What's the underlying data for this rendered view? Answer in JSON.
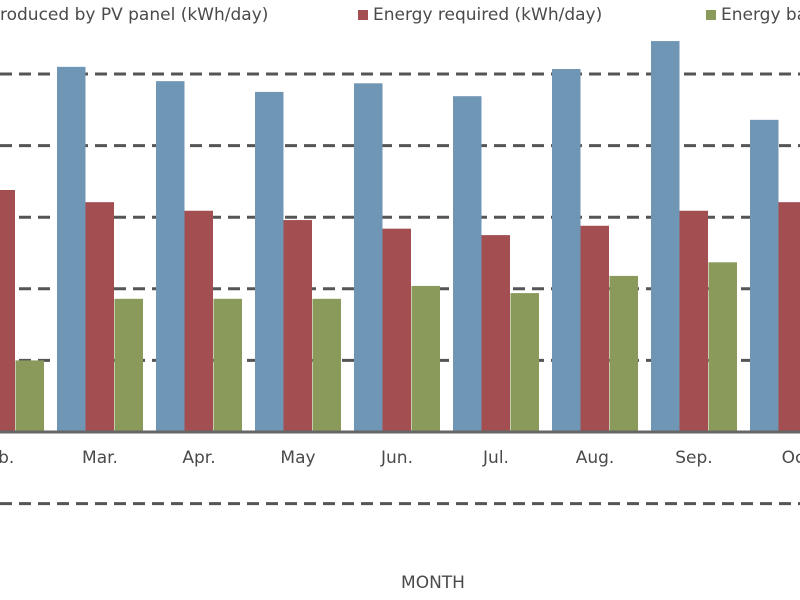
{
  "chart_data": {
    "type": "bar",
    "x_label": "MONTH",
    "categories": [
      "eb.",
      "Mar.",
      "Apr.",
      "May",
      "Jun.",
      "Jul.",
      "Aug.",
      "Sep.",
      "Oc"
    ],
    "series": [
      {
        "name": "roduced by PV panel (kWh/day)",
        "color": "#7096b6",
        "values": [
          null,
          5.1,
          4.9,
          4.75,
          4.87,
          4.69,
          5.07,
          5.46,
          4.36
        ]
      },
      {
        "name": "Energy required (kWh/day)",
        "color": "#a34e50",
        "values": [
          3.38,
          3.21,
          3.09,
          2.96,
          2.84,
          2.75,
          2.88,
          3.09,
          3.21
        ]
      },
      {
        "name": "Energy ba",
        "color": "#8a9a5b",
        "values": [
          1.0,
          1.86,
          1.86,
          1.86,
          2.04,
          1.94,
          2.18,
          2.37,
          null
        ]
      }
    ],
    "ylim": [
      -2,
      6
    ],
    "yticks": [
      -1,
      1,
      2,
      3,
      4,
      5
    ],
    "grid": true
  }
}
